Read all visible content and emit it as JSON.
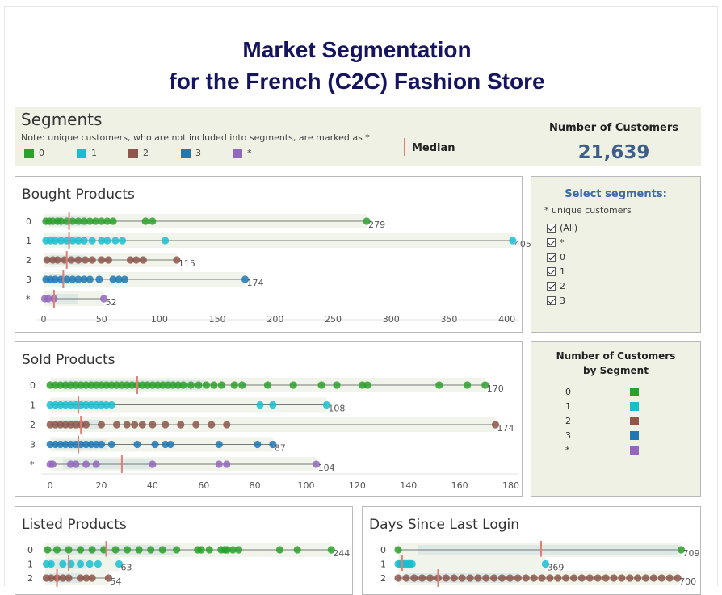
{
  "title_line1": "Market Segmentation",
  "title_line2": "for the French (C2C) Fashion Store",
  "segments_header": {
    "title": "Segments",
    "note": "Note: unique customers, who are not included into segments, are marked  as *",
    "legend": [
      {
        "label": "0",
        "color": "#2ca02c"
      },
      {
        "label": "1",
        "color": "#17becf"
      },
      {
        "label": "2",
        "color": "#8c564b"
      },
      {
        "label": "3",
        "color": "#1f77b4"
      },
      {
        "label": "*",
        "color": "#9467bd"
      }
    ],
    "median_label": "Median",
    "customers_label": "Number of Customers",
    "customers_value": "21,639"
  },
  "select_panel": {
    "title": "Select segments:",
    "note": "* unique customers",
    "options": [
      "(All)",
      "*",
      "0",
      "1",
      "2",
      "3"
    ]
  },
  "by_segment_panel": {
    "title_line1": "Number of Customers",
    "title_line2": "by Segment",
    "rows": [
      {
        "label": "0",
        "color": "#2ca02c"
      },
      {
        "label": "1",
        "color": "#17becf"
      },
      {
        "label": "2",
        "color": "#8c564b"
      },
      {
        "label": "3",
        "color": "#1f77b4"
      },
      {
        "label": "*",
        "color": "#9467bd"
      }
    ]
  },
  "chart_data": [
    {
      "type": "scatter",
      "title": "Bought Products",
      "categories": [
        "0",
        "1",
        "2",
        "3",
        "*"
      ],
      "xlim": [
        0,
        410
      ],
      "xticks": [
        0,
        50,
        100,
        150,
        200,
        250,
        300,
        350,
        400
      ],
      "series": [
        {
          "category": "0",
          "max_label": "279",
          "max": 279,
          "median": 22,
          "q1": 5,
          "q3": 38,
          "points": [
            2,
            5,
            8,
            12,
            15,
            20,
            25,
            30,
            35,
            40,
            45,
            50,
            55,
            60,
            88,
            94,
            279
          ]
        },
        {
          "category": "1",
          "max_label": "405",
          "max": 405,
          "median": 22,
          "q1": 5,
          "q3": 40,
          "points": [
            2,
            6,
            10,
            15,
            20,
            25,
            30,
            35,
            42,
            50,
            55,
            62,
            68,
            105,
            405
          ]
        },
        {
          "category": "2",
          "max_label": "115",
          "max": 115,
          "median": 20,
          "q1": 5,
          "q3": 35,
          "points": [
            3,
            8,
            12,
            18,
            24,
            30,
            36,
            42,
            50,
            56,
            75,
            80,
            86,
            115
          ]
        },
        {
          "category": "3",
          "max_label": "174",
          "max": 174,
          "median": 17,
          "q1": 5,
          "q3": 30,
          "points": [
            2,
            6,
            10,
            15,
            20,
            25,
            30,
            35,
            40,
            48,
            60,
            65,
            70,
            174
          ]
        },
        {
          "category": "*",
          "max_label": "52",
          "max": 52,
          "median": 9,
          "q1": 4,
          "q3": 30,
          "points": [
            1,
            4,
            9,
            52
          ]
        }
      ]
    },
    {
      "type": "scatter",
      "title": "Sold Products",
      "categories": [
        "0",
        "1",
        "2",
        "3",
        "*"
      ],
      "xlim": [
        -1,
        183
      ],
      "xticks": [
        0,
        20,
        40,
        60,
        80,
        100,
        120,
        140,
        160,
        180
      ],
      "series": [
        {
          "category": "0",
          "max_label": "170",
          "max": 170,
          "median": 34,
          "q1": 5,
          "q3": 60,
          "points": [
            0,
            2,
            4,
            6,
            8,
            10,
            12,
            14,
            16,
            18,
            20,
            22,
            24,
            26,
            28,
            30,
            32,
            34,
            36,
            38,
            40,
            42,
            44,
            46,
            48,
            50,
            52,
            55,
            58,
            61,
            64,
            67,
            72,
            75,
            85,
            95,
            106,
            112,
            122,
            124,
            152,
            163,
            170
          ]
        },
        {
          "category": "1",
          "max_label": "108",
          "max": 108,
          "median": 11,
          "q1": 2,
          "q3": 22,
          "points": [
            0,
            2,
            4,
            6,
            8,
            10,
            12,
            14,
            16,
            18,
            20,
            22,
            24,
            82,
            87,
            108
          ]
        },
        {
          "category": "2",
          "max_label": "174",
          "max": 174,
          "median": 12,
          "q1": 2,
          "q3": 20,
          "points": [
            0,
            2,
            4,
            6,
            8,
            10,
            12,
            14,
            20,
            26,
            30,
            33,
            36,
            40,
            45,
            51,
            57,
            63,
            69,
            174
          ]
        },
        {
          "category": "3",
          "max_label": "87",
          "max": 87,
          "median": 11,
          "q1": 2,
          "q3": 22,
          "points": [
            0,
            2,
            4,
            6,
            8,
            10,
            12,
            14,
            16,
            18,
            20,
            24,
            34,
            41,
            45,
            47,
            66,
            81,
            87
          ]
        },
        {
          "category": "*",
          "max_label": "104",
          "max": 104,
          "median": 28,
          "q1": 5,
          "q3": 40,
          "points": [
            0,
            1,
            8,
            10,
            14,
            18,
            40,
            66,
            69,
            104
          ]
        }
      ]
    },
    {
      "type": "scatter",
      "title": "Listed Products",
      "categories": [
        "0",
        "1",
        "2"
      ],
      "xlim": [
        0,
        250
      ],
      "series": [
        {
          "category": "0",
          "max_label": "244",
          "max": 244,
          "median": 52,
          "q1": 5,
          "q3": 110,
          "points": [
            2,
            10,
            20,
            30,
            40,
            50,
            60,
            70,
            80,
            90,
            100,
            112,
            130,
            133,
            140,
            150,
            153,
            155,
            160,
            165,
            200,
            215,
            244
          ]
        },
        {
          "category": "1",
          "max_label": "63",
          "max": 63,
          "median": 20,
          "q1": 3,
          "q3": 35,
          "points": [
            1,
            5,
            15,
            22,
            30,
            38,
            45,
            63
          ]
        },
        {
          "category": "2",
          "max_label": "54",
          "max": 54,
          "median": 10,
          "q1": 3,
          "q3": 30,
          "points": [
            1,
            5,
            10,
            15,
            20,
            30,
            35,
            40,
            54
          ]
        }
      ]
    },
    {
      "type": "scatter",
      "title": "Days Since Last Login",
      "categories": [
        "0",
        "1",
        "2"
      ],
      "xlim": [
        0,
        720
      ],
      "series": [
        {
          "category": "0",
          "max_label": "709",
          "max": 709,
          "median": 358,
          "q1": 50,
          "q3": 700,
          "points": [
            0,
            709
          ]
        },
        {
          "category": "1",
          "max_label": "369",
          "max": 369,
          "median": 10,
          "q1": 2,
          "q3": 35,
          "points": [
            0,
            5,
            10,
            15,
            20,
            25,
            30,
            35,
            369
          ]
        },
        {
          "category": "2",
          "max_label": "700",
          "max": 700,
          "median": 100,
          "q1": 20,
          "q3": 300,
          "points": [
            0,
            20,
            40,
            60,
            80,
            100,
            120,
            140,
            160,
            180,
            200,
            220,
            240,
            260,
            280,
            300,
            320,
            340,
            360,
            380,
            400,
            420,
            440,
            460,
            480,
            500,
            520,
            540,
            560,
            580,
            600,
            620,
            640,
            660,
            680,
            700
          ]
        }
      ]
    }
  ]
}
